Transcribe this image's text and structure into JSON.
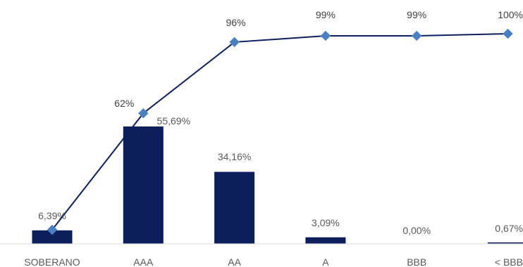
{
  "chart_data": {
    "type": "bar",
    "categories": [
      "SOBERANO",
      "AAA",
      "AA",
      "A",
      "BBB",
      "< BBB"
    ],
    "series": [
      {
        "type": "bar",
        "values": [
          6.39,
          55.69,
          34.16,
          3.09,
          0.0,
          0.67
        ],
        "labels": [
          "6,39%",
          "55,69%",
          "34,16%",
          "3,09%",
          "0,00%",
          "0,67%"
        ],
        "color": "#0c1f5c"
      },
      {
        "type": "line",
        "values": [
          6.39,
          62,
          96,
          99,
          99,
          100
        ],
        "labels": [
          "",
          "62%",
          "96%",
          "99%",
          "99%",
          "100%"
        ],
        "color": "#0c1f5c",
        "marker_color": "#4a7fc1",
        "marker": "diamond"
      }
    ],
    "ylim": [
      0,
      100
    ],
    "grid": false,
    "legend": "none"
  }
}
